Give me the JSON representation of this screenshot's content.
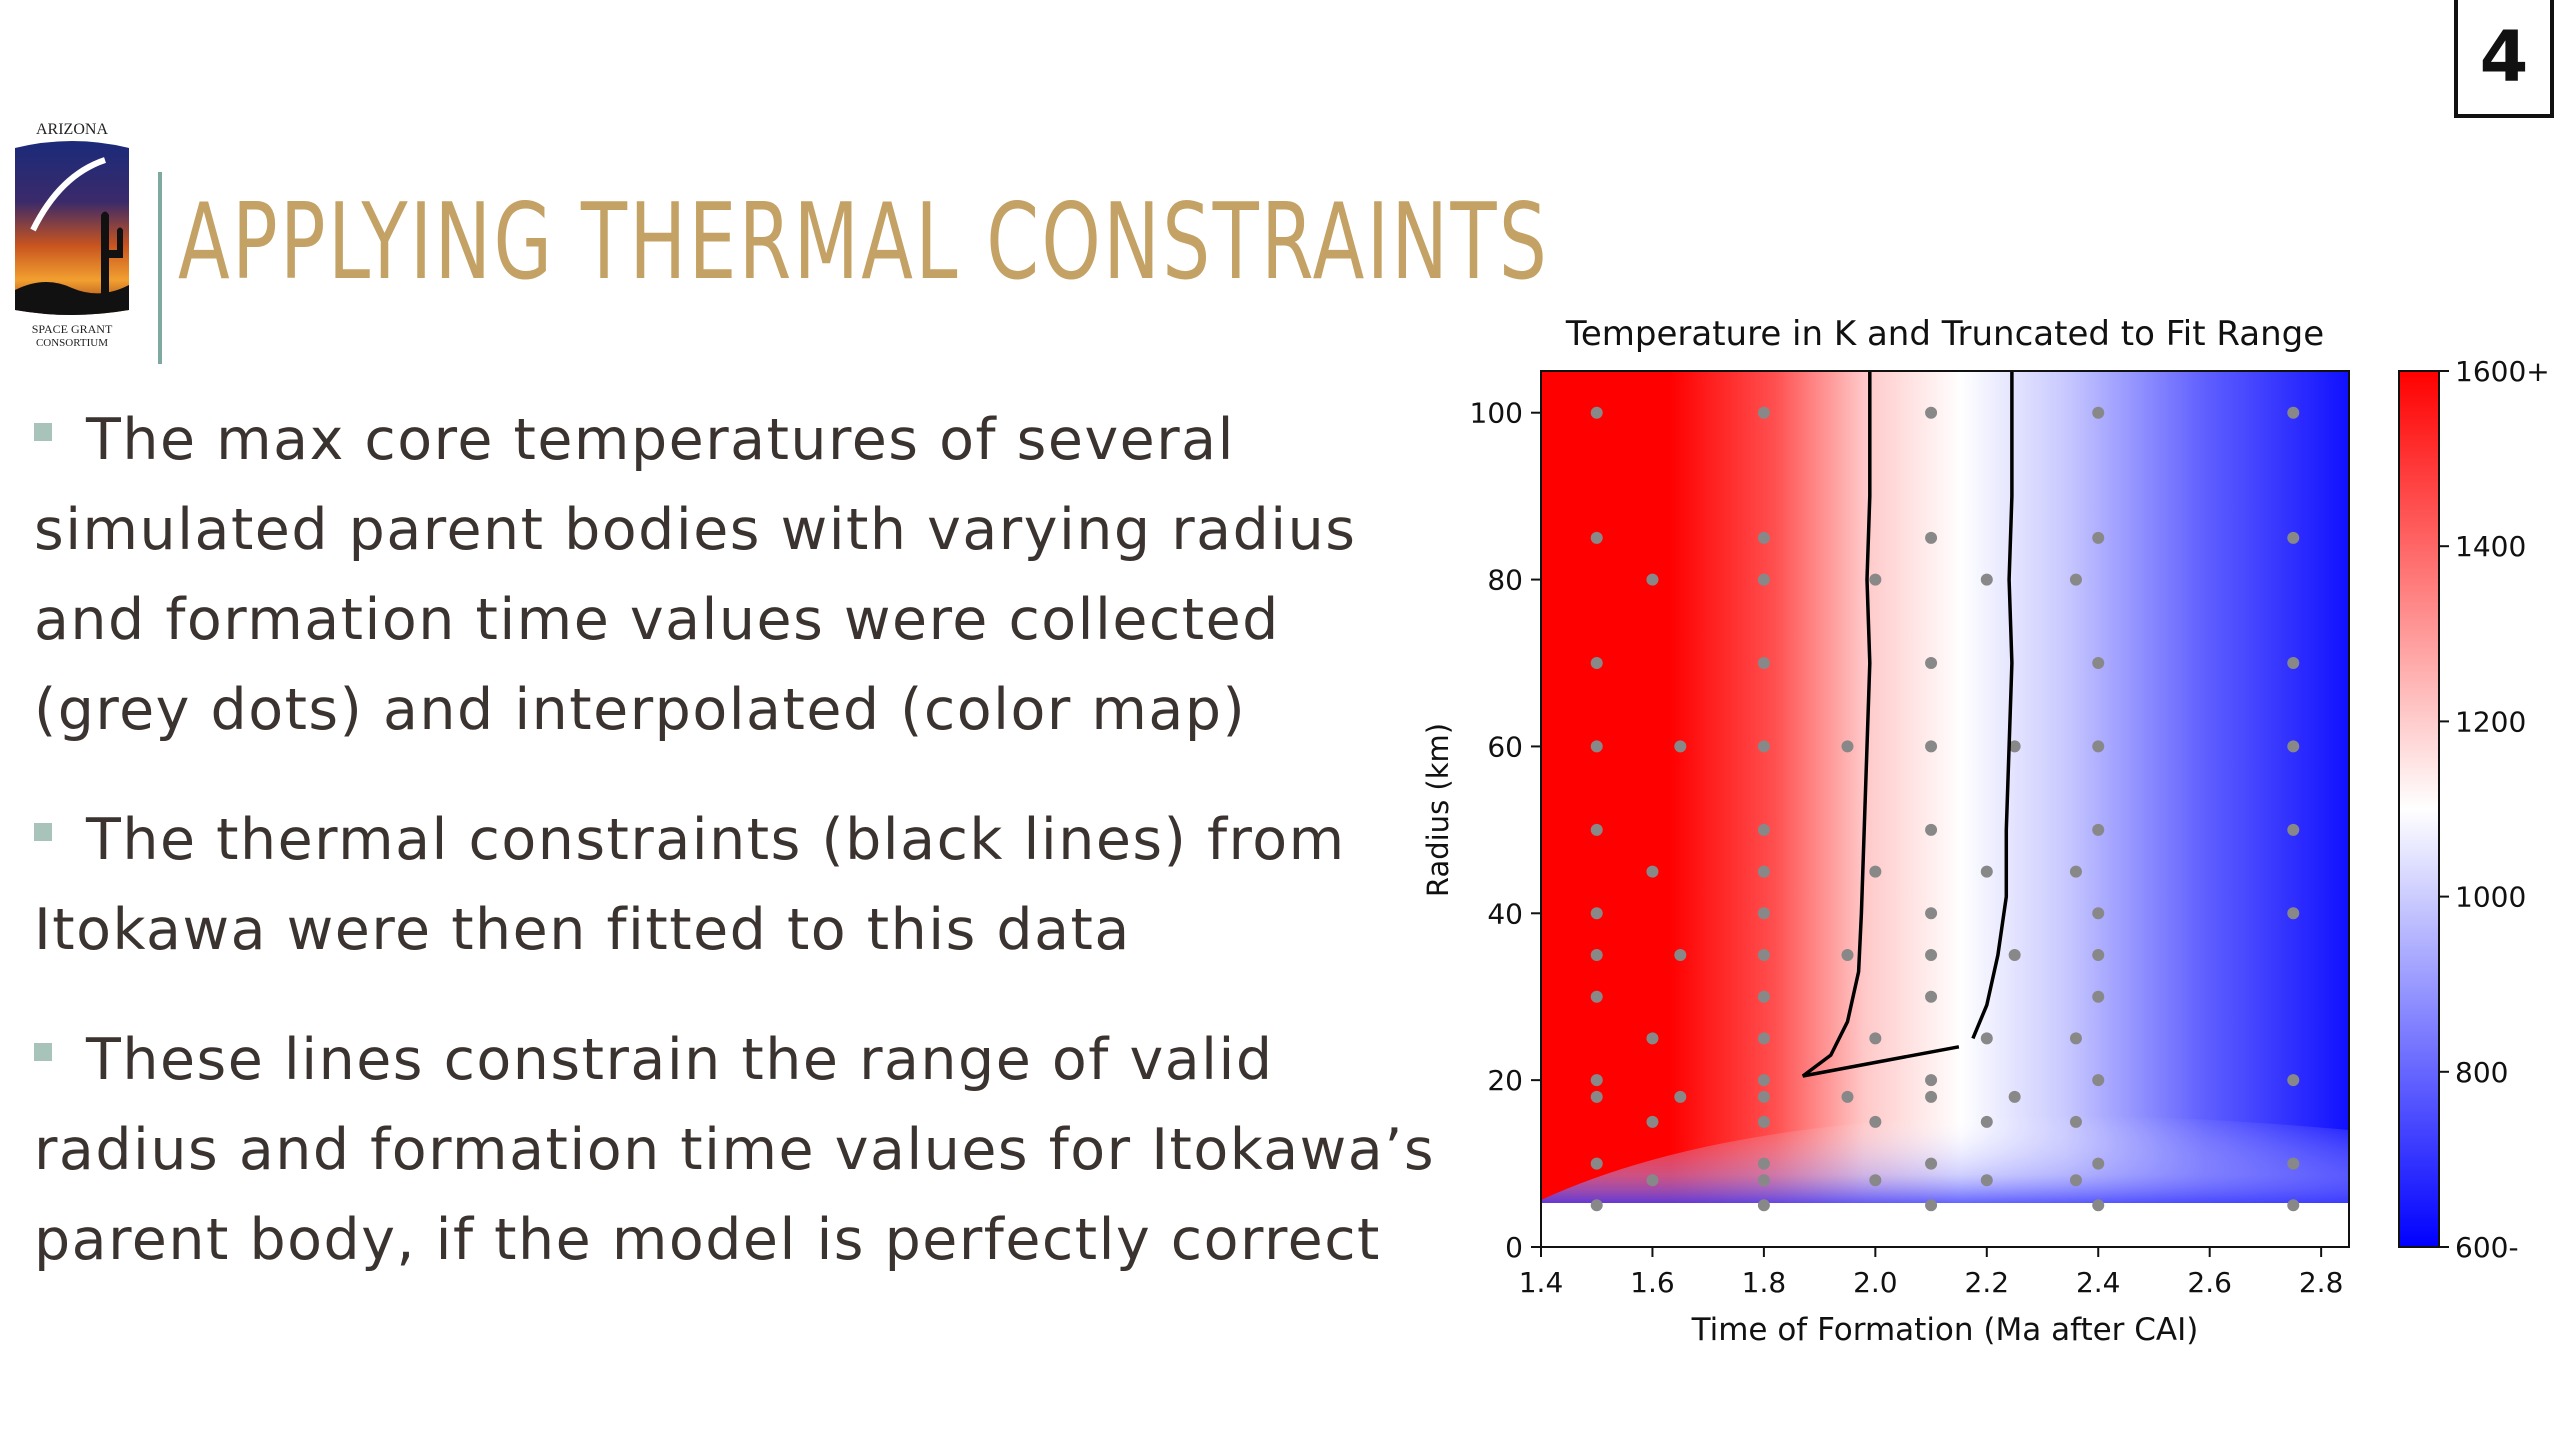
{
  "logo": {
    "top_text": "ARIZONA",
    "bottom_text_1": "SPACE GRANT",
    "bottom_text_2": "CONSORTIUM"
  },
  "slide": {
    "title": "APPLYING THERMAL CONSTRAINTS",
    "number": "4",
    "title_color": "#c4a265"
  },
  "bullets": [
    {
      "text": "The max core temperatures of several simulated parent bodies with varying radius and formation time values were collected (grey dots) and interpolated (color map)"
    },
    {
      "text": "The thermal constraints (black lines) from Itokawa were then fitted to this data"
    },
    {
      "text": "These lines constrain the range of valid radius and formation time values for Itokawa’s parent body, if the model is perfectly correct"
    }
  ],
  "chart_data": {
    "type": "heatmap",
    "title": "Temperature in K and Truncated to Fit Range",
    "xlabel": "Time of Formation (Ma after CAI)",
    "ylabel": "Radius (km)",
    "xlim": [
      1.4,
      2.85
    ],
    "ylim": [
      0,
      105
    ],
    "x_ticks": [
      "1.4",
      "1.6",
      "1.8",
      "2.0",
      "2.2",
      "2.4",
      "2.6",
      "2.8"
    ],
    "y_ticks": [
      "0",
      "20",
      "40",
      "60",
      "80",
      "100"
    ],
    "colorbar": {
      "ticks": [
        "1600+",
        "1400",
        "1200",
        "1000",
        "800",
        "600-"
      ],
      "range": [
        600,
        1600
      ],
      "colors": [
        "#0000ff",
        "#ffffff",
        "#ff0000"
      ]
    },
    "sample_points": {
      "color": "#888888",
      "points": [
        [
          1.5,
          100
        ],
        [
          1.8,
          100
        ],
        [
          2.1,
          100
        ],
        [
          2.4,
          100
        ],
        [
          2.75,
          100
        ],
        [
          1.5,
          85
        ],
        [
          1.8,
          85
        ],
        [
          2.1,
          85
        ],
        [
          2.4,
          85
        ],
        [
          2.75,
          85
        ],
        [
          1.6,
          80
        ],
        [
          1.8,
          80
        ],
        [
          2.0,
          80
        ],
        [
          2.2,
          80
        ],
        [
          2.36,
          80
        ],
        [
          1.5,
          70
        ],
        [
          1.8,
          70
        ],
        [
          2.1,
          70
        ],
        [
          2.4,
          70
        ],
        [
          2.75,
          70
        ],
        [
          1.5,
          60
        ],
        [
          1.65,
          60
        ],
        [
          1.8,
          60
        ],
        [
          1.95,
          60
        ],
        [
          2.1,
          60
        ],
        [
          2.25,
          60
        ],
        [
          2.4,
          60
        ],
        [
          2.75,
          60
        ],
        [
          1.5,
          50
        ],
        [
          1.8,
          50
        ],
        [
          2.1,
          50
        ],
        [
          2.4,
          50
        ],
        [
          2.75,
          50
        ],
        [
          1.6,
          45
        ],
        [
          1.8,
          45
        ],
        [
          2.0,
          45
        ],
        [
          2.2,
          45
        ],
        [
          2.36,
          45
        ],
        [
          1.5,
          40
        ],
        [
          1.8,
          40
        ],
        [
          2.1,
          40
        ],
        [
          2.4,
          40
        ],
        [
          2.75,
          40
        ],
        [
          1.5,
          35
        ],
        [
          1.65,
          35
        ],
        [
          1.8,
          35
        ],
        [
          1.95,
          35
        ],
        [
          2.1,
          35
        ],
        [
          2.25,
          35
        ],
        [
          2.4,
          35
        ],
        [
          1.5,
          30
        ],
        [
          1.8,
          30
        ],
        [
          2.1,
          30
        ],
        [
          2.4,
          30
        ],
        [
          1.6,
          25
        ],
        [
          1.8,
          25
        ],
        [
          2.0,
          25
        ],
        [
          2.2,
          25
        ],
        [
          2.36,
          25
        ],
        [
          1.5,
          20
        ],
        [
          1.8,
          20
        ],
        [
          2.1,
          20
        ],
        [
          2.4,
          20
        ],
        [
          2.75,
          20
        ],
        [
          1.5,
          18
        ],
        [
          1.65,
          18
        ],
        [
          1.8,
          18
        ],
        [
          1.95,
          18
        ],
        [
          2.1,
          18
        ],
        [
          2.25,
          18
        ],
        [
          1.6,
          15
        ],
        [
          1.8,
          15
        ],
        [
          2.0,
          15
        ],
        [
          2.2,
          15
        ],
        [
          2.36,
          15
        ],
        [
          1.5,
          10
        ],
        [
          1.8,
          10
        ],
        [
          2.1,
          10
        ],
        [
          2.4,
          10
        ],
        [
          2.75,
          10
        ],
        [
          1.6,
          8
        ],
        [
          1.8,
          8
        ],
        [
          2.0,
          8
        ],
        [
          2.2,
          8
        ],
        [
          2.36,
          8
        ],
        [
          1.5,
          5
        ],
        [
          1.8,
          5
        ],
        [
          2.1,
          5
        ],
        [
          2.4,
          5
        ],
        [
          2.75,
          5
        ]
      ]
    },
    "constraint_lines": {
      "color": "#000000",
      "lines": [
        [
          [
            1.99,
            105
          ],
          [
            1.99,
            90
          ],
          [
            1.985,
            80
          ],
          [
            1.99,
            70
          ],
          [
            1.985,
            60
          ],
          [
            1.98,
            50
          ],
          [
            1.975,
            40
          ],
          [
            1.97,
            33
          ],
          [
            1.95,
            27
          ],
          [
            1.92,
            23
          ],
          [
            1.87,
            20.5
          ],
          [
            2.15,
            24
          ]
        ],
        [
          [
            2.245,
            105
          ],
          [
            2.245,
            90
          ],
          [
            2.24,
            80
          ],
          [
            2.245,
            70
          ],
          [
            2.24,
            60
          ],
          [
            2.235,
            50
          ],
          [
            2.235,
            42
          ],
          [
            2.22,
            35
          ],
          [
            2.2,
            29
          ],
          [
            2.175,
            25
          ]
        ]
      ]
    }
  }
}
